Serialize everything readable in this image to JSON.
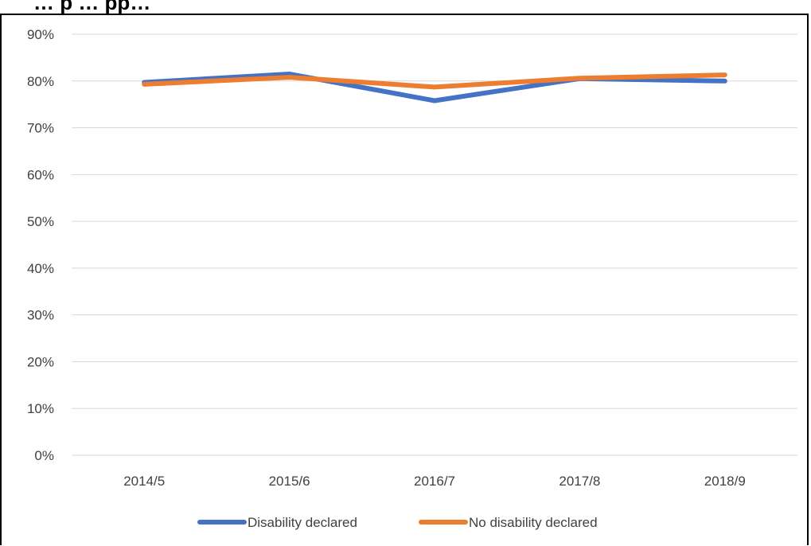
{
  "chart_data": {
    "type": "line",
    "title": "",
    "title_fragment": "… p   …   pp…",
    "categories": [
      "2014/5",
      "2015/6",
      "2016/7",
      "2017/8",
      "2018/9"
    ],
    "ylim": [
      0,
      0.9
    ],
    "yticks": [
      "0%",
      "10%",
      "20%",
      "30%",
      "40%",
      "50%",
      "60%",
      "70%",
      "80%",
      "90%"
    ],
    "grid": true,
    "legend_position": "bottom",
    "series": [
      {
        "name": "Disability declared",
        "color": "#4472C4",
        "values": [
          0.797,
          0.815,
          0.758,
          0.805,
          0.8
        ]
      },
      {
        "name": "No disability declared",
        "color": "#ED7D31",
        "values": [
          0.793,
          0.808,
          0.787,
          0.806,
          0.813
        ]
      }
    ]
  }
}
